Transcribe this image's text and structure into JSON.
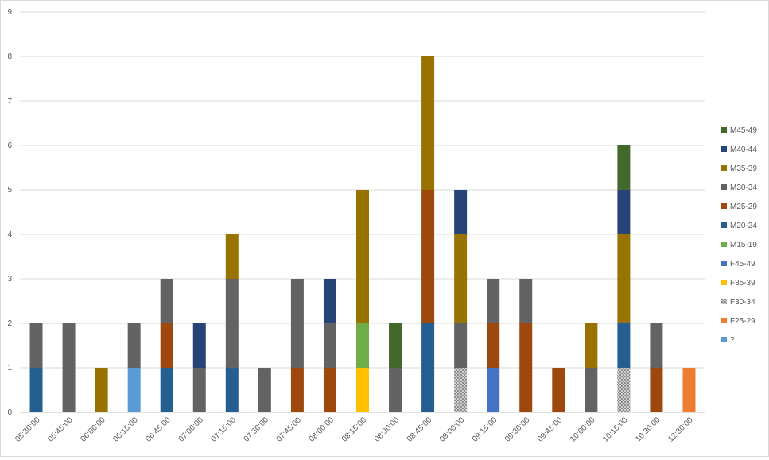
{
  "chart_data": {
    "type": "bar",
    "stacked": true,
    "title": "",
    "xlabel": "",
    "ylabel": "",
    "ylim": [
      0,
      9
    ],
    "y_ticks": [
      "0",
      "1",
      "2",
      "3",
      "4",
      "5",
      "6",
      "7",
      "8",
      "9"
    ],
    "grid": true,
    "legend_position": "right",
    "categories": [
      "05:30:00",
      "05:45:00",
      "06:00:00",
      "06:15:00",
      "06:45:00",
      "07:00:00",
      "07:15:00",
      "07:30:00",
      "07:45:00",
      "08:00:00",
      "08:15:00",
      "08:30:00",
      "08:45:00",
      "09:00:00",
      "09:15:00",
      "09:30:00",
      "09:45:00",
      "10:00:00",
      "10:15:00",
      "10:30:00",
      "12:30:00"
    ],
    "series": [
      {
        "name": "?",
        "color": "#5b9bd5",
        "pattern": false,
        "values": [
          0,
          0,
          0,
          1,
          0,
          0,
          0,
          0,
          0,
          0,
          0,
          0,
          0,
          0,
          0,
          0,
          0,
          0,
          0,
          0,
          0
        ]
      },
      {
        "name": "F25-29",
        "color": "#ed7d31",
        "pattern": false,
        "values": [
          0,
          0,
          0,
          0,
          0,
          0,
          0,
          0,
          0,
          0,
          0,
          0,
          0,
          0,
          0,
          0,
          0,
          0,
          0,
          0,
          1
        ]
      },
      {
        "name": "F30-34",
        "color": "#a5a5a5",
        "pattern": true,
        "values": [
          0,
          0,
          0,
          0,
          0,
          0,
          0,
          0,
          0,
          0,
          0,
          0,
          0,
          1,
          0,
          0,
          0,
          0,
          1,
          0,
          0
        ]
      },
      {
        "name": "F35-39",
        "color": "#ffc000",
        "pattern": false,
        "values": [
          0,
          0,
          0,
          0,
          0,
          0,
          0,
          0,
          0,
          0,
          1,
          0,
          0,
          0,
          0,
          0,
          0,
          0,
          0,
          0,
          0
        ]
      },
      {
        "name": "F45-49",
        "color": "#4472c4",
        "pattern": false,
        "values": [
          0,
          0,
          0,
          0,
          0,
          0,
          0,
          0,
          0,
          0,
          0,
          0,
          0,
          0,
          1,
          0,
          0,
          0,
          0,
          0,
          0
        ]
      },
      {
        "name": "M15-19",
        "color": "#70ad47",
        "pattern": false,
        "values": [
          0,
          0,
          0,
          0,
          0,
          0,
          0,
          0,
          0,
          0,
          1,
          0,
          0,
          0,
          0,
          0,
          0,
          0,
          0,
          0,
          0
        ]
      },
      {
        "name": "M20-24",
        "color": "#255e91",
        "pattern": false,
        "values": [
          1,
          0,
          0,
          0,
          1,
          0,
          1,
          0,
          0,
          0,
          0,
          0,
          2,
          0,
          0,
          0,
          0,
          0,
          1,
          0,
          0
        ]
      },
      {
        "name": "M25-29",
        "color": "#9e480e",
        "pattern": false,
        "values": [
          0,
          0,
          0,
          0,
          1,
          0,
          0,
          0,
          1,
          1,
          0,
          0,
          3,
          0,
          1,
          2,
          1,
          0,
          0,
          1,
          0
        ]
      },
      {
        "name": "M30-34",
        "color": "#636363",
        "pattern": false,
        "values": [
          1,
          2,
          0,
          1,
          1,
          1,
          2,
          1,
          2,
          1,
          0,
          1,
          0,
          1,
          1,
          1,
          0,
          1,
          0,
          1,
          0
        ]
      },
      {
        "name": "M35-39",
        "color": "#997300",
        "pattern": false,
        "values": [
          0,
          0,
          1,
          0,
          0,
          0,
          1,
          0,
          0,
          0,
          3,
          0,
          3,
          2,
          0,
          0,
          0,
          1,
          2,
          0,
          0
        ]
      },
      {
        "name": "M40-44",
        "color": "#264478",
        "pattern": false,
        "values": [
          0,
          0,
          0,
          0,
          0,
          1,
          0,
          0,
          0,
          1,
          0,
          0,
          0,
          1,
          0,
          0,
          0,
          0,
          1,
          0,
          0
        ]
      },
      {
        "name": "M45-49",
        "color": "#43682b",
        "pattern": false,
        "values": [
          0,
          0,
          0,
          0,
          0,
          0,
          0,
          0,
          0,
          0,
          0,
          1,
          0,
          0,
          0,
          0,
          0,
          0,
          1,
          0,
          0
        ]
      }
    ]
  }
}
